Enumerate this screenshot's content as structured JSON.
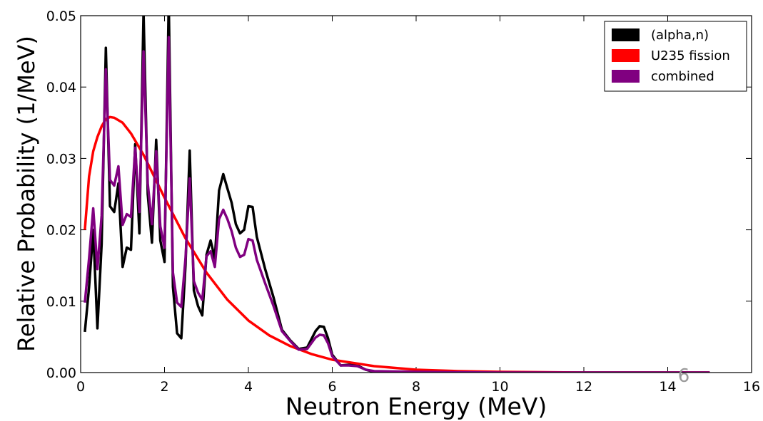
{
  "chart_data": {
    "type": "line",
    "xlabel": "Neutron Energy (MeV)",
    "ylabel": "Relative Probability (1/MeV)",
    "annotation": "6",
    "xlim": [
      0,
      16
    ],
    "xticks": [
      0,
      2,
      4,
      6,
      8,
      10,
      12,
      14,
      16
    ],
    "ylim": [
      0,
      0.05
    ],
    "yticks": [
      {
        "value": 0,
        "label": "0.00"
      },
      0.01,
      0.02,
      0.03,
      0.04,
      0.05
    ],
    "legend": "upper right",
    "series": [
      {
        "name": "(alpha,n)",
        "color": "#000000",
        "x": [
          0.1,
          0.2,
          0.3,
          0.4,
          0.5,
          0.6,
          0.7,
          0.8,
          0.9,
          1.0,
          1.1,
          1.2,
          1.3,
          1.4,
          1.5,
          1.6,
          1.7,
          1.8,
          1.9,
          2.0,
          2.1,
          2.2,
          2.3,
          2.4,
          2.5,
          2.6,
          2.7,
          2.8,
          2.9,
          3.0,
          3.1,
          3.2,
          3.3,
          3.4,
          3.5,
          3.6,
          3.7,
          3.8,
          3.9,
          4.0,
          4.1,
          4.2,
          4.4,
          4.6,
          4.8,
          5.0,
          5.2,
          5.4,
          5.6,
          5.7,
          5.8,
          5.9,
          6.0,
          6.2,
          6.4,
          6.6,
          6.8,
          7.0,
          8,
          10,
          15
        ],
        "values": [
          0.0057,
          0.012,
          0.02,
          0.0062,
          0.018,
          0.0455,
          0.0233,
          0.0225,
          0.0265,
          0.0148,
          0.0175,
          0.0172,
          0.032,
          0.0195,
          0.0505,
          0.025,
          0.0182,
          0.0326,
          0.0185,
          0.0155,
          0.052,
          0.012,
          0.0055,
          0.0048,
          0.015,
          0.0311,
          0.0115,
          0.0093,
          0.008,
          0.0165,
          0.0185,
          0.016,
          0.0255,
          0.0278,
          0.0258,
          0.0238,
          0.0208,
          0.0195,
          0.02,
          0.0233,
          0.0232,
          0.019,
          0.0145,
          0.0105,
          0.006,
          0.0045,
          0.0033,
          0.0035,
          0.0058,
          0.0065,
          0.0064,
          0.0048,
          0.0025,
          0.001,
          0.0011,
          0.001,
          0.0004,
          0.0001,
          0,
          0,
          0
        ]
      },
      {
        "name": "U235 fission",
        "color": "#ff0000",
        "x": [
          0.1,
          0.2,
          0.3,
          0.4,
          0.5,
          0.6,
          0.7,
          0.8,
          1.0,
          1.2,
          1.5,
          2,
          2.5,
          3,
          3.5,
          4,
          4.5,
          5,
          5.5,
          6,
          7,
          8,
          9,
          10,
          12,
          15
        ],
        "values": [
          0.02,
          0.0275,
          0.031,
          0.033,
          0.0345,
          0.0355,
          0.0358,
          0.0357,
          0.035,
          0.0335,
          0.0305,
          0.0245,
          0.0188,
          0.014,
          0.0102,
          0.0073,
          0.0052,
          0.0037,
          0.0026,
          0.0018,
          0.0009,
          0.0004,
          0.0002,
          0.0001,
          0,
          0
        ]
      },
      {
        "name": "combined",
        "color": "#800080",
        "x": [
          0.1,
          0.2,
          0.3,
          0.4,
          0.5,
          0.6,
          0.7,
          0.8,
          0.9,
          1.0,
          1.1,
          1.2,
          1.3,
          1.4,
          1.5,
          1.6,
          1.7,
          1.8,
          1.9,
          2.0,
          2.1,
          2.2,
          2.3,
          2.4,
          2.5,
          2.6,
          2.7,
          2.8,
          2.9,
          3.0,
          3.1,
          3.2,
          3.3,
          3.4,
          3.5,
          3.6,
          3.7,
          3.8,
          3.9,
          4.0,
          4.1,
          4.2,
          4.4,
          4.6,
          4.8,
          5.0,
          5.2,
          5.4,
          5.6,
          5.7,
          5.8,
          5.9,
          6.0,
          6.2,
          6.4,
          6.6,
          6.8,
          7.0,
          8,
          10,
          15
        ],
        "values": [
          0.0098,
          0.016,
          0.023,
          0.0145,
          0.022,
          0.0425,
          0.027,
          0.0262,
          0.0289,
          0.0207,
          0.0222,
          0.0218,
          0.0315,
          0.0225,
          0.045,
          0.0265,
          0.0208,
          0.031,
          0.0205,
          0.0175,
          0.047,
          0.014,
          0.0098,
          0.0092,
          0.016,
          0.0272,
          0.0128,
          0.0112,
          0.0102,
          0.0163,
          0.017,
          0.0148,
          0.0215,
          0.0228,
          0.0215,
          0.0198,
          0.0175,
          0.0162,
          0.0165,
          0.0187,
          0.0185,
          0.0158,
          0.0125,
          0.0093,
          0.0058,
          0.0044,
          0.0032,
          0.0033,
          0.0049,
          0.0053,
          0.0052,
          0.0041,
          0.0023,
          0.001,
          0.001,
          0.0009,
          0.0004,
          0.0002,
          0.0001,
          0,
          0
        ]
      }
    ]
  }
}
